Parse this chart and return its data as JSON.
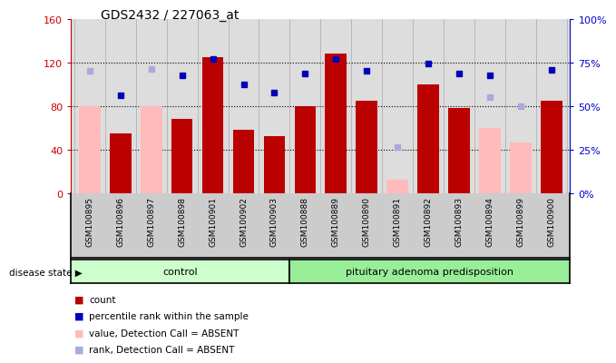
{
  "title": "GDS2432 / 227063_at",
  "samples": [
    "GSM100895",
    "GSM100896",
    "GSM100897",
    "GSM100898",
    "GSM100901",
    "GSM100902",
    "GSM100903",
    "GSM100888",
    "GSM100889",
    "GSM100890",
    "GSM100891",
    "GSM100892",
    "GSM100893",
    "GSM100894",
    "GSM100899",
    "GSM100900"
  ],
  "count": [
    null,
    55,
    null,
    68,
    125,
    58,
    52,
    80,
    128,
    85,
    null,
    100,
    78,
    null,
    null,
    85
  ],
  "count_absent": [
    80,
    null,
    80,
    null,
    null,
    null,
    null,
    null,
    null,
    null,
    12,
    null,
    null,
    60,
    46,
    null
  ],
  "percentile_rank": [
    null,
    90,
    null,
    108,
    123,
    100,
    92,
    110,
    123,
    112,
    null,
    119,
    110,
    108,
    null,
    113
  ],
  "rank_absent": [
    112,
    null,
    114,
    null,
    null,
    null,
    null,
    null,
    null,
    null,
    42,
    null,
    null,
    88,
    80,
    null
  ],
  "control_count": 7,
  "ylim_left": [
    0,
    160
  ],
  "ylim_right": [
    0,
    100
  ],
  "yticks_left": [
    0,
    40,
    80,
    120,
    160
  ],
  "yticks_right": [
    0,
    25,
    50,
    75,
    100
  ],
  "ytick_labels_right": [
    "0%",
    "25%",
    "50%",
    "75%",
    "100%"
  ],
  "bar_color_dark_red": "#bb0000",
  "bar_color_pink": "#ffbbbb",
  "dot_color_blue": "#0000bb",
  "dot_color_light_blue": "#aaaadd",
  "group_labels": [
    "control",
    "pituitary adenoma predisposition"
  ],
  "group_color_control": "#ccffcc",
  "group_color_pit": "#99ee99",
  "disease_state_label": "disease state",
  "legend_items": [
    {
      "label": "count",
      "color": "#bb0000"
    },
    {
      "label": "percentile rank within the sample",
      "color": "#0000bb"
    },
    {
      "label": "value, Detection Call = ABSENT",
      "color": "#ffbbbb"
    },
    {
      "label": "rank, Detection Call = ABSENT",
      "color": "#aaaadd"
    }
  ],
  "dotted_line_y": [
    40,
    80,
    120
  ],
  "background_color": "#ffffff"
}
